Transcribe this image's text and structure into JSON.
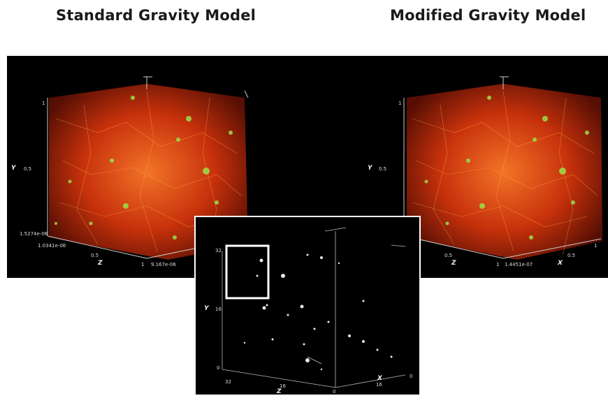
{
  "titles": {
    "left": "Standard Gravity Model",
    "right": "Modified Gravity Model"
  },
  "left_panel": {
    "y_axis_label": "Y",
    "y_ticks": [
      "1",
      "0.5",
      "1.5274e-06"
    ],
    "z_axis_label": "Z",
    "z_ticks": [
      "1.0341e-06",
      "0.5",
      "1"
    ],
    "x_tick": "9.167e-06"
  },
  "right_panel": {
    "y_axis_label": "Y",
    "y_ticks": [
      "1",
      "0.5"
    ],
    "z_axis_label": "Z",
    "z_ticks": [
      "0.5",
      "1"
    ],
    "x_axis_label": "X",
    "x_ticks": [
      "1.4451e-07",
      "0.5",
      "1"
    ]
  },
  "inset": {
    "y_axis_label": "Y",
    "y_ticks": [
      "32",
      "16",
      "0"
    ],
    "z_axis_label": "Z",
    "z_ticks": [
      "32",
      "16",
      "0"
    ],
    "x_axis_label": "X",
    "x_ticks": [
      "16",
      "0"
    ]
  },
  "colors": {
    "background": "#000000",
    "filament_core": "#ff5a1a",
    "filament_highlight": "#9be04a",
    "zoom_box": "#ffffff"
  }
}
